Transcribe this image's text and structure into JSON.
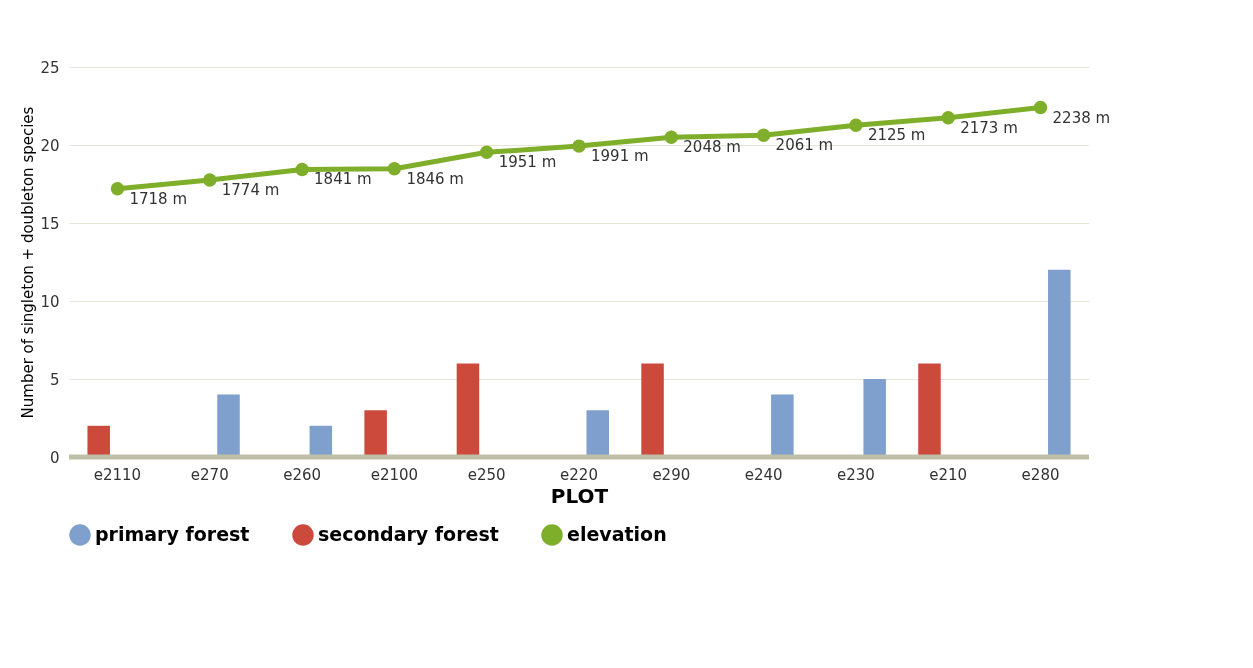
{
  "chart_data": {
    "type": "bar",
    "xlabel": "PLOT",
    "ylabel": "Number of singleton + doubleton species",
    "categories": [
      "e2110",
      "e270",
      "e260",
      "e2100",
      "e250",
      "e220",
      "e290",
      "e240",
      "e230",
      "e210",
      "e280"
    ],
    "series": [
      {
        "name": "primary forest",
        "color": "#7f9fcc",
        "values": [
          null,
          4,
          2,
          null,
          null,
          3,
          null,
          4,
          5,
          null,
          12
        ]
      },
      {
        "name": "secondary forest",
        "color": "#cc4a3c",
        "values": [
          2,
          null,
          null,
          3,
          6,
          null,
          6,
          null,
          null,
          6,
          null
        ]
      },
      {
        "name": "elevation",
        "type": "line",
        "axis": "y2",
        "color": "#7fae2a",
        "marker": "circle",
        "values": [
          1718,
          1774,
          1841,
          1846,
          1951,
          1991,
          2048,
          2061,
          2125,
          2173,
          2238
        ],
        "value_labels": [
          "1718 m",
          "1774 m",
          "1841 m",
          "1846 m",
          "1951 m",
          "1991 m",
          "2048 m",
          "2061 m",
          "2125 m",
          "2173 m",
          "2238 m"
        ]
      }
    ],
    "ylim": [
      0,
      25
    ],
    "yticks": [
      0,
      5,
      10,
      15,
      20,
      25
    ],
    "grid": "y",
    "legend": "bottom"
  }
}
